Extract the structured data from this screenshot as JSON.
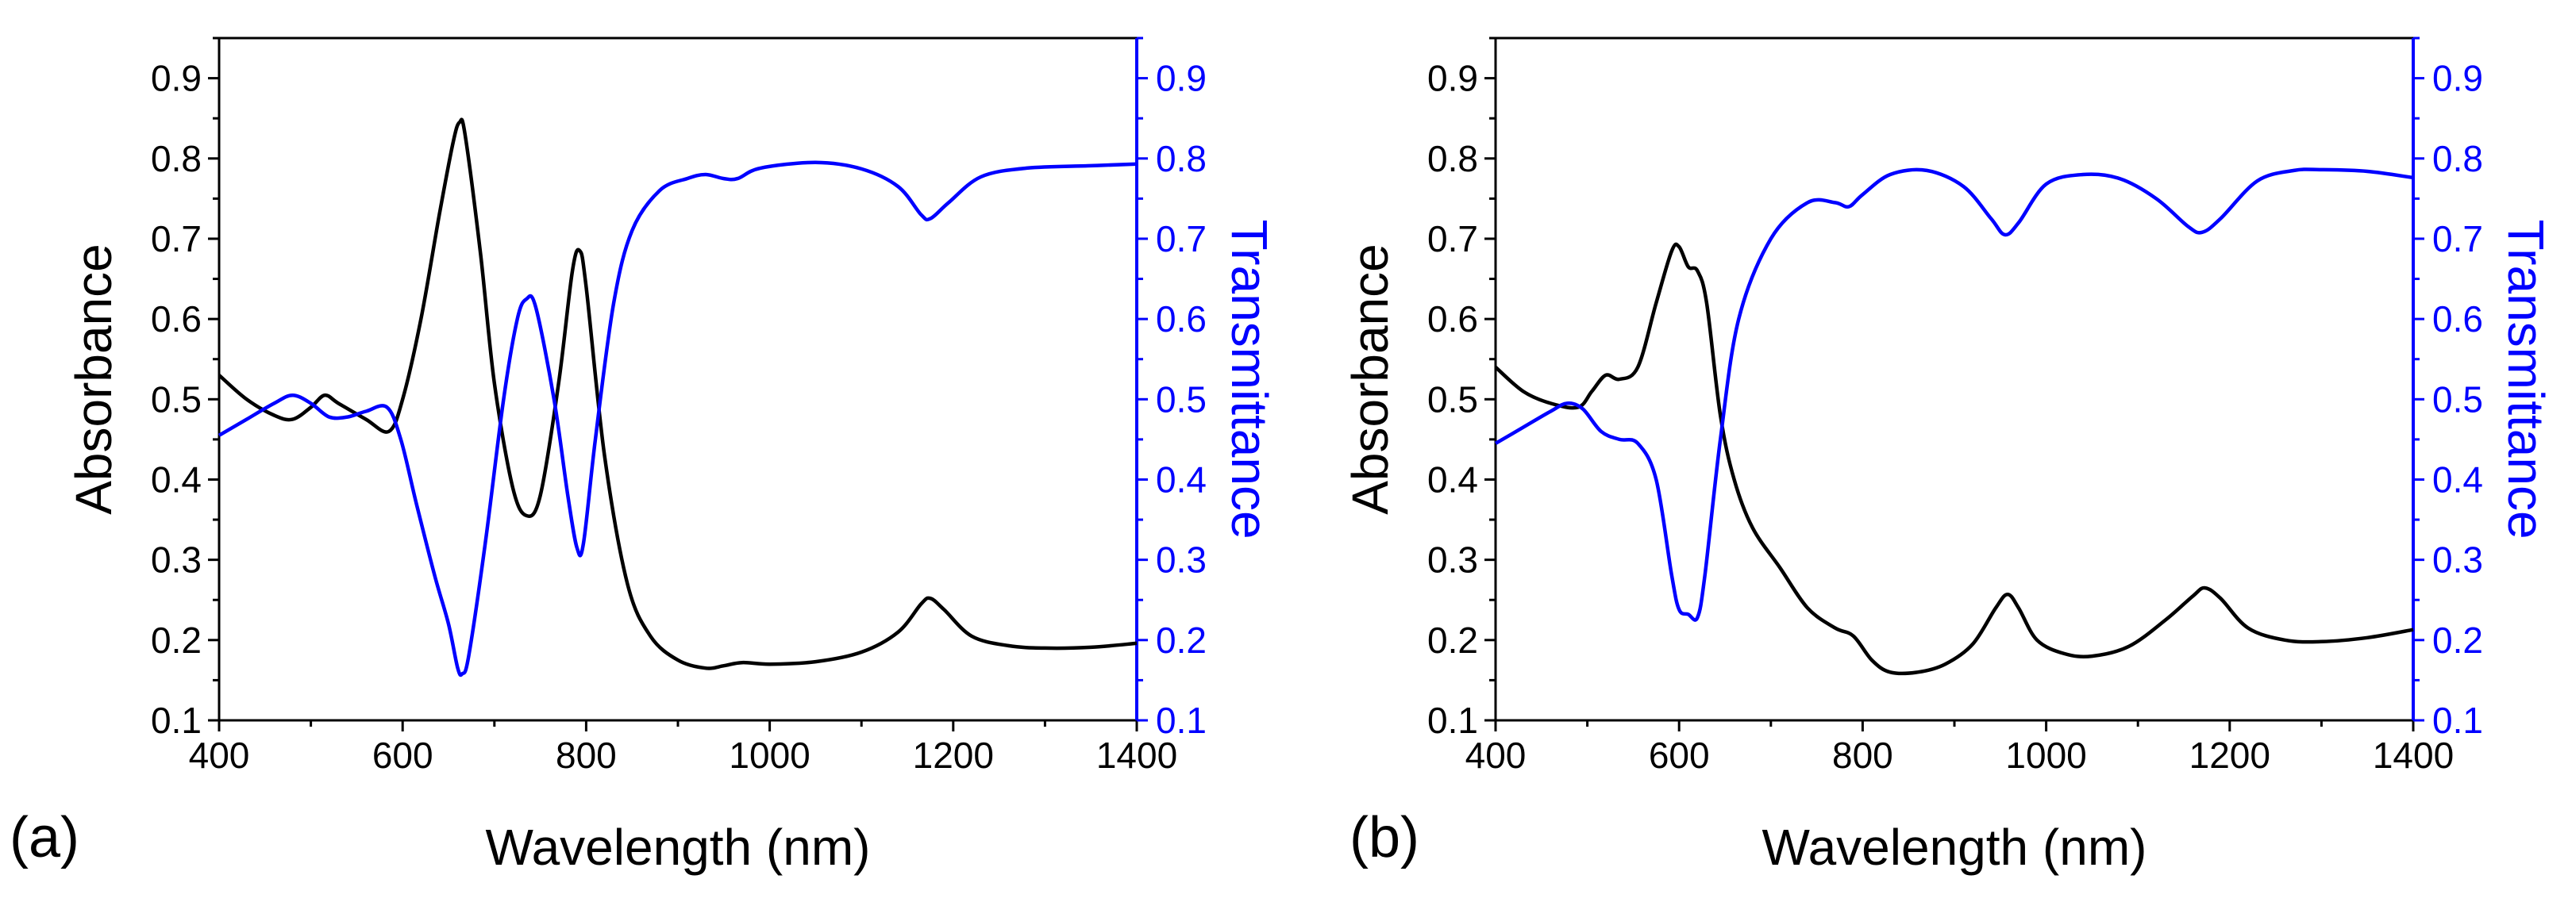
{
  "colors": {
    "absorbance": "#000000",
    "transmittance": "#0000ff",
    "axis": "#000000"
  },
  "chart_data": [
    {
      "type": "line",
      "panel": "(a)",
      "xlabel": "Wavelength (nm)",
      "ylabel_left": "Absorbance",
      "ylabel_right": "Transmittance",
      "xlim": [
        400,
        1400
      ],
      "ylim_left": [
        0.1,
        0.95
      ],
      "ylim_right": [
        0.1,
        0.95
      ],
      "xticks": [
        400,
        600,
        800,
        1000,
        1200,
        1400
      ],
      "yticks_left": [
        "0.1",
        "0.2",
        "0.3",
        "0.4",
        "0.5",
        "0.6",
        "0.7",
        "0.8",
        "0.9"
      ],
      "yticks_right": [
        "0.1",
        "0.2",
        "0.3",
        "0.4",
        "0.5",
        "0.6",
        "0.7",
        "0.8",
        "0.9"
      ],
      "series": [
        {
          "name": "Absorbance",
          "axis": "left",
          "points": [
            [
              400,
              0.53
            ],
            [
              430,
              0.5
            ],
            [
              460,
              0.48
            ],
            [
              480,
              0.475
            ],
            [
              500,
              0.49
            ],
            [
              515,
              0.505
            ],
            [
              530,
              0.495
            ],
            [
              560,
              0.475
            ],
            [
              585,
              0.46
            ],
            [
              600,
              0.5
            ],
            [
              620,
              0.6
            ],
            [
              640,
              0.73
            ],
            [
              655,
              0.82
            ],
            [
              662,
              0.845
            ],
            [
              668,
              0.83
            ],
            [
              685,
              0.68
            ],
            [
              700,
              0.52
            ],
            [
              720,
              0.39
            ],
            [
              735,
              0.355
            ],
            [
              750,
              0.38
            ],
            [
              770,
              0.52
            ],
            [
              785,
              0.66
            ],
            [
              793,
              0.685
            ],
            [
              800,
              0.64
            ],
            [
              820,
              0.43
            ],
            [
              845,
              0.27
            ],
            [
              870,
              0.205
            ],
            [
              900,
              0.175
            ],
            [
              930,
              0.165
            ],
            [
              950,
              0.168
            ],
            [
              970,
              0.172
            ],
            [
              1000,
              0.17
            ],
            [
              1050,
              0.173
            ],
            [
              1100,
              0.185
            ],
            [
              1140,
              0.21
            ],
            [
              1165,
              0.245
            ],
            [
              1175,
              0.252
            ],
            [
              1190,
              0.238
            ],
            [
              1220,
              0.205
            ],
            [
              1260,
              0.193
            ],
            [
              1300,
              0.19
            ],
            [
              1350,
              0.191
            ],
            [
              1400,
              0.196
            ]
          ]
        },
        {
          "name": "Transmittance",
          "axis": "right",
          "points": [
            [
              400,
              0.455
            ],
            [
              430,
              0.475
            ],
            [
              460,
              0.495
            ],
            [
              480,
              0.505
            ],
            [
              500,
              0.495
            ],
            [
              520,
              0.478
            ],
            [
              540,
              0.478
            ],
            [
              560,
              0.485
            ],
            [
              583,
              0.49
            ],
            [
              598,
              0.45
            ],
            [
              615,
              0.37
            ],
            [
              635,
              0.28
            ],
            [
              650,
              0.22
            ],
            [
              660,
              0.165
            ],
            [
              665,
              0.158
            ],
            [
              672,
              0.18
            ],
            [
              690,
              0.32
            ],
            [
              710,
              0.5
            ],
            [
              725,
              0.6
            ],
            [
              735,
              0.625
            ],
            [
              745,
              0.615
            ],
            [
              765,
              0.5
            ],
            [
              780,
              0.38
            ],
            [
              790,
              0.315
            ],
            [
              797,
              0.32
            ],
            [
              810,
              0.45
            ],
            [
              830,
              0.62
            ],
            [
              850,
              0.71
            ],
            [
              880,
              0.76
            ],
            [
              910,
              0.775
            ],
            [
              930,
              0.78
            ],
            [
              950,
              0.775
            ],
            [
              965,
              0.775
            ],
            [
              990,
              0.788
            ],
            [
              1050,
              0.795
            ],
            [
              1100,
              0.787
            ],
            [
              1140,
              0.765
            ],
            [
              1165,
              0.73
            ],
            [
              1175,
              0.725
            ],
            [
              1195,
              0.745
            ],
            [
              1230,
              0.777
            ],
            [
              1280,
              0.788
            ],
            [
              1350,
              0.791
            ],
            [
              1400,
              0.793
            ]
          ]
        }
      ]
    },
    {
      "type": "line",
      "panel": "(b)",
      "xlabel": "Wavelength (nm)",
      "ylabel_left": "Absorbance",
      "ylabel_right": "Transmittance",
      "xlim": [
        400,
        1400
      ],
      "ylim_left": [
        0.1,
        0.95
      ],
      "ylim_right": [
        0.1,
        0.95
      ],
      "xticks": [
        400,
        600,
        800,
        1000,
        1200,
        1400
      ],
      "yticks_left": [
        "0.1",
        "0.2",
        "0.3",
        "0.4",
        "0.5",
        "0.6",
        "0.7",
        "0.8",
        "0.9"
      ],
      "yticks_right": [
        "0.1",
        "0.2",
        "0.3",
        "0.4",
        "0.5",
        "0.6",
        "0.7",
        "0.8",
        "0.9"
      ],
      "series": [
        {
          "name": "Absorbance",
          "axis": "left",
          "points": [
            [
              400,
              0.54
            ],
            [
              430,
              0.51
            ],
            [
              460,
              0.495
            ],
            [
              490,
              0.49
            ],
            [
              505,
              0.51
            ],
            [
              520,
              0.53
            ],
            [
              535,
              0.525
            ],
            [
              555,
              0.54
            ],
            [
              575,
              0.62
            ],
            [
              592,
              0.685
            ],
            [
              600,
              0.69
            ],
            [
              610,
              0.665
            ],
            [
              620,
              0.66
            ],
            [
              630,
              0.62
            ],
            [
              645,
              0.48
            ],
            [
              660,
              0.4
            ],
            [
              680,
              0.34
            ],
            [
              710,
              0.29
            ],
            [
              740,
              0.24
            ],
            [
              770,
              0.215
            ],
            [
              790,
              0.205
            ],
            [
              810,
              0.175
            ],
            [
              830,
              0.16
            ],
            [
              860,
              0.16
            ],
            [
              890,
              0.17
            ],
            [
              920,
              0.195
            ],
            [
              945,
              0.24
            ],
            [
              958,
              0.257
            ],
            [
              970,
              0.24
            ],
            [
              990,
              0.2
            ],
            [
              1020,
              0.183
            ],
            [
              1050,
              0.18
            ],
            [
              1090,
              0.192
            ],
            [
              1130,
              0.225
            ],
            [
              1160,
              0.255
            ],
            [
              1173,
              0.265
            ],
            [
              1190,
              0.252
            ],
            [
              1220,
              0.215
            ],
            [
              1260,
              0.2
            ],
            [
              1300,
              0.198
            ],
            [
              1350,
              0.203
            ],
            [
              1400,
              0.213
            ]
          ]
        },
        {
          "name": "Transmittance",
          "axis": "right",
          "points": [
            [
              400,
              0.445
            ],
            [
              430,
              0.465
            ],
            [
              460,
              0.485
            ],
            [
              478,
              0.495
            ],
            [
              495,
              0.488
            ],
            [
              515,
              0.46
            ],
            [
              535,
              0.45
            ],
            [
              555,
              0.445
            ],
            [
              575,
              0.4
            ],
            [
              592,
              0.28
            ],
            [
              600,
              0.238
            ],
            [
              610,
              0.232
            ],
            [
              620,
              0.228
            ],
            [
              628,
              0.28
            ],
            [
              645,
              0.45
            ],
            [
              665,
              0.6
            ],
            [
              700,
              0.7
            ],
            [
              740,
              0.745
            ],
            [
              770,
              0.745
            ],
            [
              785,
              0.74
            ],
            [
              800,
              0.755
            ],
            [
              830,
              0.78
            ],
            [
              870,
              0.785
            ],
            [
              910,
              0.765
            ],
            [
              940,
              0.725
            ],
            [
              955,
              0.705
            ],
            [
              970,
              0.72
            ],
            [
              1000,
              0.768
            ],
            [
              1040,
              0.78
            ],
            [
              1080,
              0.775
            ],
            [
              1120,
              0.75
            ],
            [
              1155,
              0.715
            ],
            [
              1170,
              0.708
            ],
            [
              1190,
              0.725
            ],
            [
              1230,
              0.772
            ],
            [
              1270,
              0.785
            ],
            [
              1300,
              0.786
            ],
            [
              1350,
              0.784
            ],
            [
              1400,
              0.776
            ]
          ]
        }
      ]
    }
  ]
}
